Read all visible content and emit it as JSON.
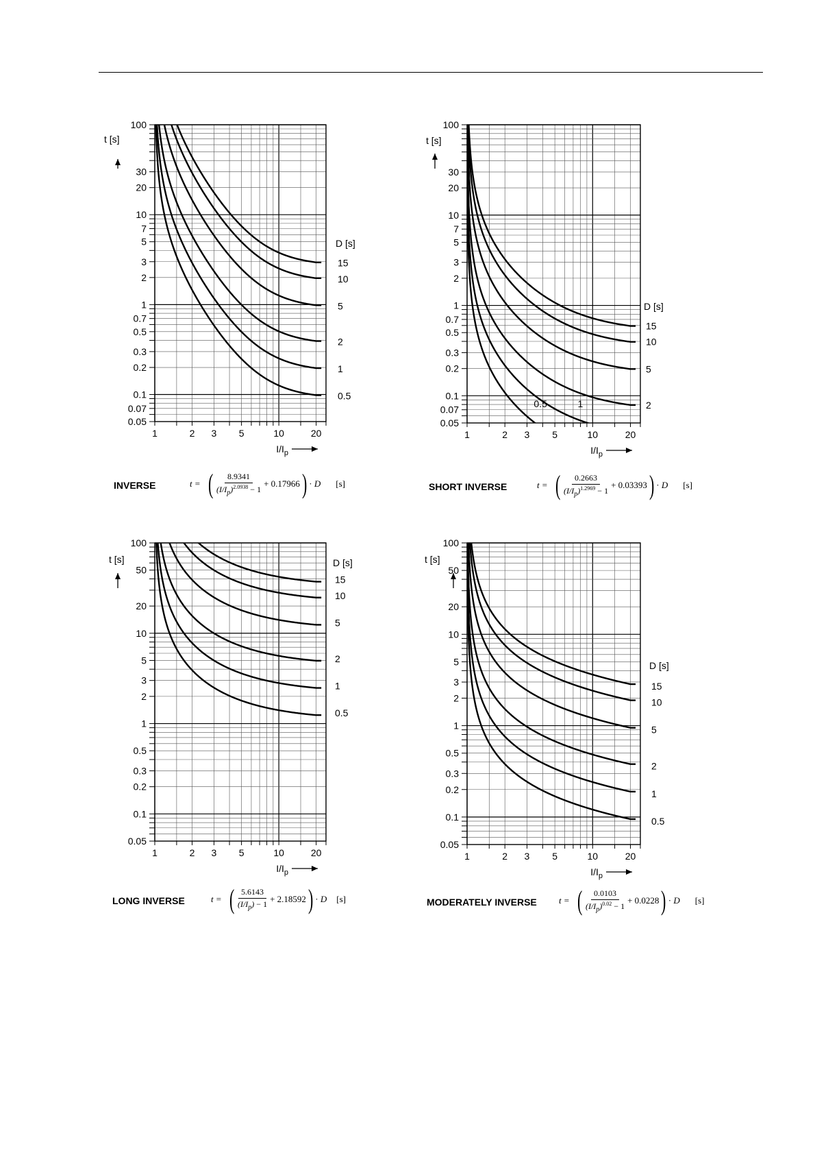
{
  "chart_data": [
    {
      "type": "line",
      "title": "INVERSE",
      "xlabel": "I/Ip",
      "ylabel": "t [s]",
      "xscale": "log",
      "yscale": "log",
      "xlim": [
        1,
        24
      ],
      "ylim": [
        0.05,
        100
      ],
      "xticks": [
        "1",
        "2",
        "3",
        "5",
        "10",
        "20"
      ],
      "yticks": [
        "100",
        "30",
        "20",
        "10",
        "7",
        "5",
        "3",
        "2",
        "1",
        "0.7",
        "0.5",
        "0.3",
        "0.2",
        "0.1",
        "0.07",
        "0.05"
      ],
      "legend_title": "D [s]",
      "formula": {
        "k": 8.9341,
        "alpha": 2.0938,
        "c": 0.17966
      },
      "formula_text": {
        "k": "8.9341",
        "alpha": "2.0938",
        "c": "0.17966"
      },
      "series": [
        {
          "name": "15",
          "D": 15
        },
        {
          "name": "10",
          "D": 10
        },
        {
          "name": "5",
          "D": 5
        },
        {
          "name": "2",
          "D": 2
        },
        {
          "name": "1",
          "D": 1
        },
        {
          "name": "0.5",
          "D": 0.5
        }
      ]
    },
    {
      "type": "line",
      "title": "SHORT INVERSE",
      "xlabel": "I/Ip",
      "ylabel": "t [s]",
      "xscale": "log",
      "yscale": "log",
      "xlim": [
        1,
        24
      ],
      "ylim": [
        0.05,
        100
      ],
      "xticks": [
        "1",
        "2",
        "3",
        "5",
        "10",
        "20"
      ],
      "yticks": [
        "100",
        "30",
        "20",
        "10",
        "7",
        "5",
        "3",
        "2",
        "1",
        "0.7",
        "0.5",
        "0.3",
        "0.2",
        "0.1",
        "0.07",
        "0.05"
      ],
      "legend_title": "D [s]",
      "formula": {
        "k": 0.2663,
        "alpha": 1.2969,
        "c": 0.03393
      },
      "formula_text": {
        "k": "0.2663",
        "alpha": "1.2969",
        "c": "0.03393"
      },
      "series": [
        {
          "name": "15",
          "D": 15
        },
        {
          "name": "10",
          "D": 10
        },
        {
          "name": "5",
          "D": 5
        },
        {
          "name": "2",
          "D": 2
        },
        {
          "name": "1",
          "D": 1
        },
        {
          "name": "0.5",
          "D": 0.5
        }
      ]
    },
    {
      "type": "line",
      "title": "LONG INVERSE",
      "xlabel": "I/Ip",
      "ylabel": "t [s]",
      "xscale": "log",
      "yscale": "log",
      "xlim": [
        1,
        24
      ],
      "ylim": [
        0.05,
        100
      ],
      "xticks": [
        "1",
        "2",
        "3",
        "5",
        "10",
        "20"
      ],
      "yticks": [
        "100",
        "50",
        "20",
        "10",
        "5",
        "3",
        "2",
        "1",
        "0.5",
        "0.3",
        "0.2",
        "0.1",
        "0.05"
      ],
      "legend_title": "D [s]",
      "formula": {
        "k": 5.6143,
        "alpha": 1,
        "c": 2.18592
      },
      "formula_text": {
        "k": "5.6143",
        "alpha": "",
        "c": "2.18592"
      },
      "series": [
        {
          "name": "15",
          "D": 15
        },
        {
          "name": "10",
          "D": 10
        },
        {
          "name": "5",
          "D": 5
        },
        {
          "name": "2",
          "D": 2
        },
        {
          "name": "1",
          "D": 1
        },
        {
          "name": "0.5",
          "D": 0.5
        }
      ]
    },
    {
      "type": "line",
      "title": "MODERATELY  INVERSE",
      "xlabel": "I/Ip",
      "ylabel": "t [s]",
      "xscale": "log",
      "yscale": "log",
      "xlim": [
        1,
        24
      ],
      "ylim": [
        0.05,
        100
      ],
      "xticks": [
        "1",
        "2",
        "3",
        "5",
        "10",
        "20"
      ],
      "yticks": [
        "100",
        "50",
        "20",
        "10",
        "5",
        "3",
        "2",
        "1",
        "0.5",
        "0.3",
        "0.2",
        "0.1",
        "0.05"
      ],
      "legend_title": "D [s]",
      "formula": {
        "k": 0.0103,
        "alpha": 0.02,
        "c": 0.0228
      },
      "formula_text": {
        "k": "0.0103",
        "alpha": "0.02",
        "c": "0.0228"
      },
      "series": [
        {
          "name": "15",
          "D": 15
        },
        {
          "name": "10",
          "D": 10
        },
        {
          "name": "5",
          "D": 5
        },
        {
          "name": "2",
          "D": 2
        },
        {
          "name": "1",
          "D": 1
        },
        {
          "name": "0.5",
          "D": 0.5
        }
      ]
    }
  ],
  "formula_common": {
    "lhs": "t =",
    "var_d": "D",
    "unit": "[s]",
    "minus_one": "− 1",
    "plus": "+",
    "dot": "·"
  }
}
